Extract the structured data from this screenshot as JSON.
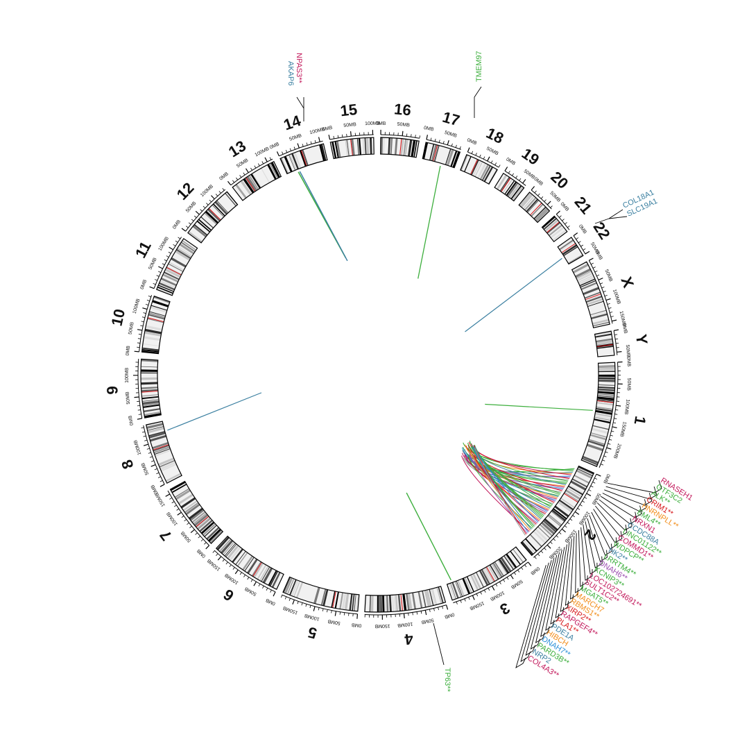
{
  "colors": {
    "red": "#d7191c",
    "crimson": "#c2185b",
    "green": "#3cae3c",
    "orange": "#f28e1c",
    "teal": "#3a7fa0",
    "purple": "#9c4fb0",
    "blue": "#2a8fd8"
  },
  "chromosomes": [
    {
      "name": "1",
      "length_mb": 249,
      "ticks": [
        "0MB",
        "50MB",
        "100MB",
        "150MB",
        "200MB"
      ]
    },
    {
      "name": "2",
      "length_mb": 243,
      "ticks": [
        "0MB",
        "50MB",
        "100MB",
        "150MB",
        "200MB"
      ]
    },
    {
      "name": "3",
      "length_mb": 198,
      "ticks": [
        "0MB",
        "50MB",
        "100MB",
        "150MB"
      ]
    },
    {
      "name": "4",
      "length_mb": 191,
      "ticks": [
        "0MB",
        "50MB",
        "100MB",
        "150MB"
      ]
    },
    {
      "name": "5",
      "length_mb": 181,
      "ticks": [
        "0MB",
        "50MB",
        "100MB",
        "150MB"
      ]
    },
    {
      "name": "6",
      "length_mb": 171,
      "ticks": [
        "0MB",
        "50MB",
        "100MB",
        "150MB"
      ]
    },
    {
      "name": "7",
      "length_mb": 159,
      "ticks": [
        "0MB",
        "50MB",
        "100MB",
        "150MB"
      ]
    },
    {
      "name": "8",
      "length_mb": 145,
      "ticks": [
        "0MB",
        "50MB",
        "100MB"
      ]
    },
    {
      "name": "9",
      "length_mb": 138,
      "ticks": [
        "0MB",
        "50MB",
        "100MB"
      ]
    },
    {
      "name": "10",
      "length_mb": 134,
      "ticks": [
        "0MB",
        "50MB",
        "100MB"
      ]
    },
    {
      "name": "11",
      "length_mb": 135,
      "ticks": [
        "0MB",
        "50MB",
        "100MB"
      ]
    },
    {
      "name": "12",
      "length_mb": 133,
      "ticks": [
        "0MB",
        "50MB",
        "100MB"
      ]
    },
    {
      "name": "13",
      "length_mb": 114,
      "ticks": [
        "0MB",
        "50MB",
        "100MB"
      ]
    },
    {
      "name": "14",
      "length_mb": 107,
      "ticks": [
        "0MB",
        "50MB",
        "100MB"
      ]
    },
    {
      "name": "15",
      "length_mb": 102,
      "ticks": [
        "0MB",
        "50MB",
        "100MB"
      ]
    },
    {
      "name": "16",
      "length_mb": 90,
      "ticks": [
        "0MB",
        "50MB"
      ]
    },
    {
      "name": "17",
      "length_mb": 83,
      "ticks": [
        "0MB",
        "50MB"
      ]
    },
    {
      "name": "18",
      "length_mb": 80,
      "ticks": [
        "0MB",
        "50MB"
      ]
    },
    {
      "name": "19",
      "length_mb": 59,
      "ticks": [
        "0MB",
        "50MB"
      ]
    },
    {
      "name": "20",
      "length_mb": 64,
      "ticks": [
        "0MB",
        "50MB"
      ]
    },
    {
      "name": "21",
      "length_mb": 47,
      "ticks": [
        "0MB"
      ]
    },
    {
      "name": "22",
      "length_mb": 51,
      "ticks": [
        "0MB",
        "50MB"
      ]
    },
    {
      "name": "X",
      "length_mb": 156,
      "ticks": [
        "0MB",
        "50MB",
        "100MB",
        "150MB"
      ]
    },
    {
      "name": "Y",
      "length_mb": 57,
      "ticks": [
        "0MB",
        "50MB"
      ]
    }
  ],
  "gene_groups": [
    {
      "id": "chr14",
      "genes": [
        {
          "label": "NPAS3**",
          "color": "crimson"
        },
        {
          "label": "AKAP6",
          "color": "teal"
        }
      ]
    },
    {
      "id": "chr17",
      "genes": [
        {
          "label": "TMEM97",
          "color": "green"
        }
      ]
    },
    {
      "id": "chr21",
      "genes": [
        {
          "label": "COL18A1",
          "color": "teal"
        },
        {
          "label": "SLC19A1",
          "color": "teal"
        }
      ]
    },
    {
      "id": "chr3",
      "genes": [
        {
          "label": "TP63**",
          "color": "green"
        }
      ]
    },
    {
      "id": "chr2",
      "genes": [
        {
          "label": "RNASEH1",
          "color": "crimson"
        },
        {
          "label": "GTF3C2",
          "color": "green"
        },
        {
          "label": "ALK**",
          "color": "green"
        },
        {
          "label": "CRIM1**",
          "color": "red"
        },
        {
          "label": "HNRNPLL**",
          "color": "orange"
        },
        {
          "label": "EML4**",
          "color": "green"
        },
        {
          "label": "NRXN1",
          "color": "crimson"
        },
        {
          "label": "CCDC88A",
          "color": "teal"
        },
        {
          "label": "LINC01122**",
          "color": "green"
        },
        {
          "label": "COMMD1**",
          "color": "crimson"
        },
        {
          "label": "WDPCP**",
          "color": "green"
        },
        {
          "label": "HK2**",
          "color": "teal"
        },
        {
          "label": "LRRTM4**",
          "color": "green"
        },
        {
          "label": "DNAH6**",
          "color": "purple"
        },
        {
          "label": "KCNIP3**",
          "color": "green"
        },
        {
          "label": "LOC102724691**",
          "color": "crimson"
        },
        {
          "label": "SULT1C2**",
          "color": "crimson"
        },
        {
          "label": "MGAT5**",
          "color": "green"
        },
        {
          "label": "MARCH7",
          "color": "orange"
        },
        {
          "label": "RBMS1**",
          "color": "orange"
        },
        {
          "label": "XIRP2**",
          "color": "red"
        },
        {
          "label": "RAPGEF4**",
          "color": "crimson"
        },
        {
          "label": "PLA1**",
          "color": "red"
        },
        {
          "label": "PDE1A",
          "color": "teal"
        },
        {
          "label": "HIBCH",
          "color": "orange"
        },
        {
          "label": "DNAH7**",
          "color": "blue"
        },
        {
          "label": "PARD3B**",
          "color": "green"
        },
        {
          "label": "NRP2",
          "color": "teal"
        },
        {
          "label": "COL4A3**",
          "color": "crimson"
        }
      ]
    }
  ]
}
